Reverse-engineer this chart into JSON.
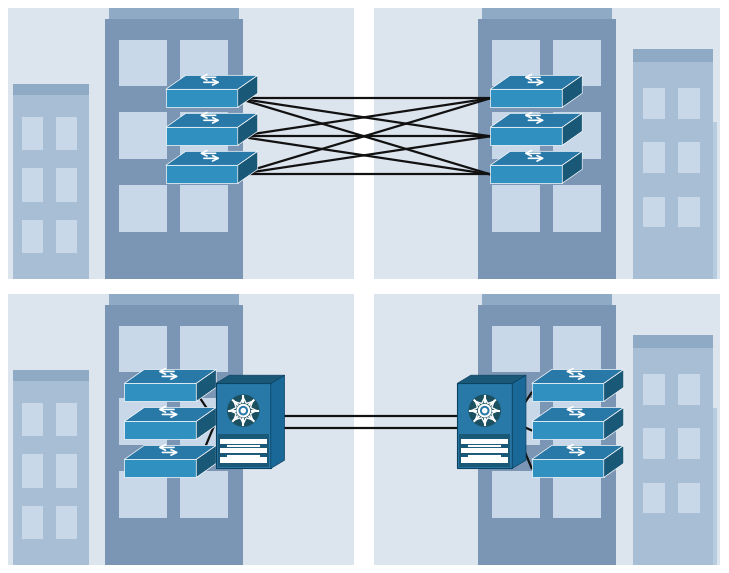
{
  "bg_color": "#ffffff",
  "panel_bg": "#dce4ee",
  "bld_main_dark": "#7a96b4",
  "bld_main_mid": "#8faac4",
  "bld_light": "#a8bed4",
  "bld_lighter": "#b8cce0",
  "bld_window": "#c8d8e8",
  "switch_top": "#2878a8",
  "switch_side_dark": "#1a5878",
  "switch_front": "#3090c0",
  "router_body": "#2878a8",
  "router_top": "#1a5878",
  "router_side": "#1a6898",
  "line_color": "#111111",
  "line_width": 1.6,
  "gap_color": "#e8eef4"
}
